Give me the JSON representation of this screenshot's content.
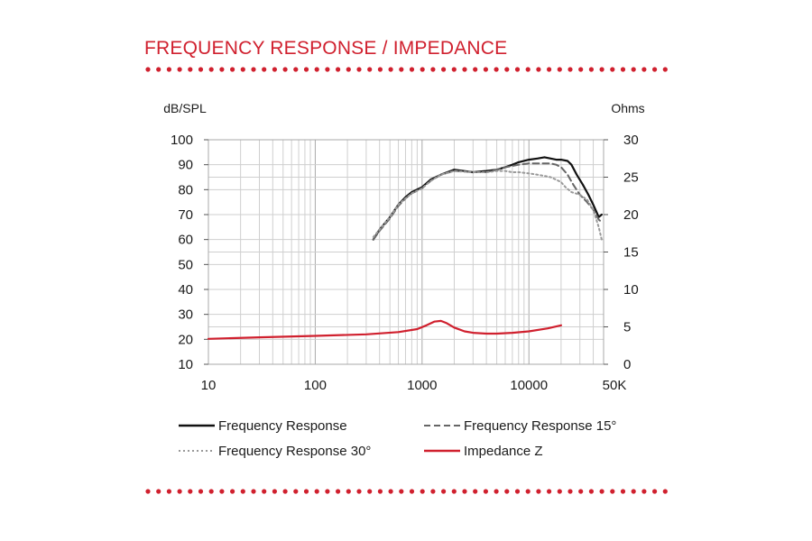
{
  "section_title": "FREQUENCY RESPONSE / IMPEDANCE",
  "colors": {
    "accent": "#d0202e",
    "black": "#111111",
    "dashed": "#666666",
    "dotted": "#999999",
    "grid": "#cfcfcf"
  },
  "chart_data": {
    "type": "line",
    "title": "",
    "x_scale": "log",
    "xlim": [
      10,
      50000
    ],
    "x_ticks": [
      {
        "value": 10,
        "label": "10"
      },
      {
        "value": 100,
        "label": "100"
      },
      {
        "value": 1000,
        "label": "1000"
      },
      {
        "value": 10000,
        "label": "10000"
      },
      {
        "value": 50000,
        "label": "50K"
      }
    ],
    "y_left": {
      "label": "dB/SPL",
      "lim": [
        10,
        100
      ],
      "ticks": [
        10,
        20,
        30,
        40,
        50,
        60,
        70,
        80,
        90,
        100
      ]
    },
    "y_right": {
      "label": "Ohms",
      "lim": [
        0,
        30
      ],
      "ticks": [
        0,
        5,
        10,
        15,
        20,
        25,
        30
      ]
    },
    "grid": true,
    "legend_position": "bottom",
    "series": [
      {
        "name": "Frequency Response",
        "axis": "left",
        "style": "solid",
        "color": "#111111",
        "points": [
          [
            350,
            60
          ],
          [
            400,
            64
          ],
          [
            500,
            69
          ],
          [
            600,
            74
          ],
          [
            700,
            77
          ],
          [
            800,
            79
          ],
          [
            1000,
            81
          ],
          [
            1200,
            84
          ],
          [
            1500,
            86
          ],
          [
            2000,
            88
          ],
          [
            3000,
            87
          ],
          [
            4000,
            87.5
          ],
          [
            5000,
            88
          ],
          [
            6000,
            89
          ],
          [
            7000,
            90
          ],
          [
            8000,
            91
          ],
          [
            10000,
            92
          ],
          [
            12000,
            92.5
          ],
          [
            14000,
            93
          ],
          [
            16000,
            92.5
          ],
          [
            18000,
            92
          ],
          [
            20000,
            92
          ],
          [
            23000,
            91.5
          ],
          [
            25000,
            90
          ],
          [
            28000,
            86
          ],
          [
            32000,
            82
          ],
          [
            36000,
            78
          ],
          [
            40000,
            74
          ],
          [
            43000,
            71
          ],
          [
            45000,
            69
          ],
          [
            48000,
            70
          ]
        ]
      },
      {
        "name": "Frequency Response 15°",
        "axis": "left",
        "style": "dashed",
        "color": "#666666",
        "points": [
          [
            350,
            60
          ],
          [
            400,
            63.5
          ],
          [
            500,
            68.5
          ],
          [
            600,
            73.5
          ],
          [
            700,
            76.5
          ],
          [
            800,
            78.5
          ],
          [
            1000,
            80.5
          ],
          [
            1200,
            83.5
          ],
          [
            1500,
            86
          ],
          [
            2000,
            87.5
          ],
          [
            3000,
            87
          ],
          [
            4000,
            87
          ],
          [
            5000,
            88
          ],
          [
            6000,
            89
          ],
          [
            7000,
            89.5
          ],
          [
            8000,
            90
          ],
          [
            10000,
            90.5
          ],
          [
            12000,
            90.5
          ],
          [
            14000,
            90.5
          ],
          [
            16000,
            90.5
          ],
          [
            18000,
            90
          ],
          [
            20000,
            89
          ],
          [
            23000,
            86
          ],
          [
            26000,
            82
          ],
          [
            30000,
            78
          ],
          [
            35000,
            75
          ],
          [
            40000,
            72
          ],
          [
            45000,
            68
          ],
          [
            48000,
            67
          ]
        ]
      },
      {
        "name": "Frequency Response 30°",
        "axis": "left",
        "style": "dotted",
        "color": "#999999",
        "points": [
          [
            350,
            61
          ],
          [
            400,
            64
          ],
          [
            500,
            69
          ],
          [
            600,
            74
          ],
          [
            700,
            76.5
          ],
          [
            800,
            78.5
          ],
          [
            1000,
            80.5
          ],
          [
            1200,
            83.5
          ],
          [
            1500,
            86
          ],
          [
            2000,
            87.5
          ],
          [
            3000,
            87
          ],
          [
            4000,
            87
          ],
          [
            5000,
            87.5
          ],
          [
            6000,
            87.5
          ],
          [
            7000,
            87
          ],
          [
            8000,
            87
          ],
          [
            10000,
            86.5
          ],
          [
            12000,
            86
          ],
          [
            14000,
            85.5
          ],
          [
            16000,
            85
          ],
          [
            18000,
            84
          ],
          [
            20000,
            83
          ],
          [
            22000,
            81
          ],
          [
            25000,
            79
          ],
          [
            30000,
            78
          ],
          [
            35000,
            76
          ],
          [
            40000,
            72
          ],
          [
            45000,
            65
          ],
          [
            48000,
            60
          ]
        ]
      },
      {
        "name": "Impedance Z",
        "axis": "right",
        "style": "solid",
        "color": "#d0202e",
        "points": [
          [
            10,
            3.4
          ],
          [
            30,
            3.6
          ],
          [
            100,
            3.8
          ],
          [
            300,
            4.0
          ],
          [
            600,
            4.3
          ],
          [
            900,
            4.7
          ],
          [
            1100,
            5.2
          ],
          [
            1300,
            5.7
          ],
          [
            1500,
            5.8
          ],
          [
            1700,
            5.5
          ],
          [
            2000,
            4.9
          ],
          [
            2500,
            4.4
          ],
          [
            3000,
            4.2
          ],
          [
            4000,
            4.1
          ],
          [
            5000,
            4.1
          ],
          [
            7000,
            4.2
          ],
          [
            10000,
            4.4
          ],
          [
            15000,
            4.8
          ],
          [
            20000,
            5.2
          ]
        ]
      }
    ]
  }
}
